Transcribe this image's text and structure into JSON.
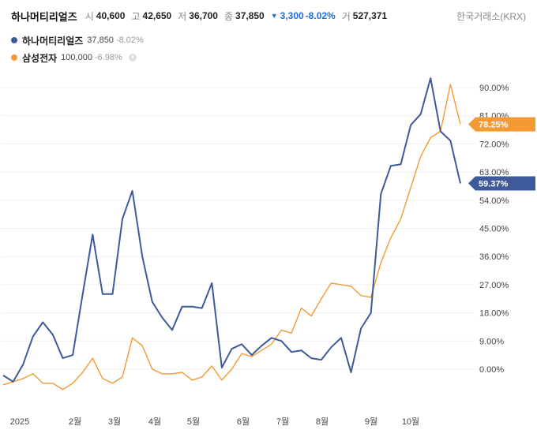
{
  "header": {
    "stock_name": "하나머티리얼즈",
    "open_label": "시",
    "open": "40,600",
    "high_label": "고",
    "high": "42,650",
    "low_label": "저",
    "low": "36,700",
    "close_label": "종",
    "close": "37,850",
    "change": "3,300",
    "change_pct": "-8.02%",
    "volume_label": "거",
    "volume": "527,371",
    "exchange": "한국거래소(KRX)"
  },
  "legend": [
    {
      "name": "하나머티리얼즈",
      "value": "37,850",
      "change": "-8.02%",
      "color": "#3e5a9a"
    },
    {
      "name": "삼성전자",
      "value": "100,000",
      "change": "-6.98%",
      "color": "#f39a33"
    }
  ],
  "colors": {
    "down": "#1e6fd9"
  },
  "chart_data": {
    "type": "line",
    "ylim": [
      -6,
      95
    ],
    "yticks": [
      "90.00%",
      "81.00%",
      "72.00%",
      "63.00%",
      "54.00%",
      "45.00%",
      "36.00%",
      "27.00%",
      "18.00%",
      "9.00%",
      "0.00%"
    ],
    "x_labels": [
      "2025",
      "2월",
      "3월",
      "4월",
      "5월",
      "6월",
      "7월",
      "8월",
      "9월",
      "10월"
    ],
    "end_labels": [
      "78.25%",
      "59.37%"
    ],
    "series": [
      {
        "name": "하나머티리얼즈",
        "color": "#3e5a9a",
        "values": [
          -2,
          -4,
          1.5,
          10.5,
          15,
          11,
          3.5,
          4.5,
          24,
          43,
          24,
          24,
          48,
          57,
          36,
          21.5,
          16.5,
          12.5,
          20,
          20,
          19.5,
          27.5,
          0.5,
          6.5,
          8,
          4.5,
          7.5,
          10,
          9,
          5.5,
          6,
          3.5,
          3,
          7,
          10,
          -1,
          13,
          18,
          56,
          65,
          65.5,
          78,
          81.5,
          93,
          76,
          73,
          59.37
        ]
      },
      {
        "name": "삼성전자",
        "color": "#f39a33",
        "values": [
          -5,
          -4,
          -3,
          -1.5,
          -4.5,
          -4.5,
          -6.5,
          -4.5,
          -1,
          3.5,
          -3,
          -4.5,
          -2.5,
          10,
          7.5,
          0,
          -1.5,
          -1.5,
          -1,
          -3.5,
          -2.5,
          1,
          -3.5,
          0,
          5,
          4,
          6,
          8,
          12.5,
          11.5,
          19.5,
          17,
          22.5,
          27.5,
          27,
          26.5,
          23.5,
          23,
          34,
          42,
          48,
          58,
          68,
          74,
          76,
          91,
          78.25
        ]
      }
    ]
  }
}
